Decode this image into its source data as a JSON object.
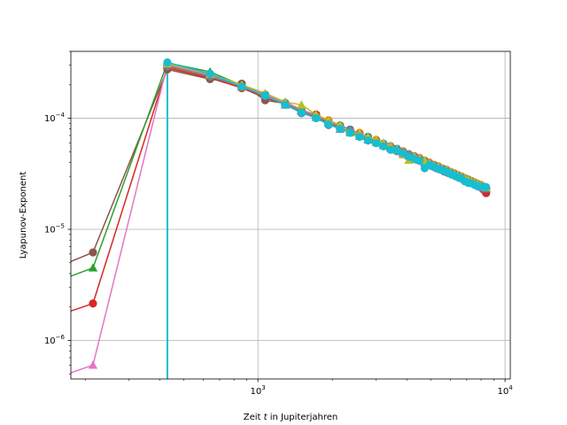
{
  "chart_data": {
    "type": "line",
    "xlabel_prefix": "Zeit ",
    "xlabel_var": "t",
    "xlabel_suffix": " in Jupiterjahren",
    "ylabel": "Lyapunov-Exponent",
    "x_scale": "log",
    "y_scale": "log",
    "xlim": [
      175,
      10500
    ],
    "ylim": [
      4.5e-07,
      0.0004
    ],
    "x_ticks": [
      {
        "value": 1000,
        "label": "10",
        "exp": "3"
      },
      {
        "value": 10000,
        "label": "10",
        "exp": "4"
      }
    ],
    "y_ticks": [
      {
        "value": 1e-06,
        "label": "10",
        "exp": "−6"
      },
      {
        "value": 1e-05,
        "label": "10",
        "exp": "−5"
      },
      {
        "value": 0.0001,
        "label": "10",
        "exp": "−4"
      }
    ],
    "grid": true,
    "legend": "none",
    "colors": [
      "#1f77b4",
      "#ff7f0e",
      "#2ca02c",
      "#d62728",
      "#9467bd",
      "#8c564b",
      "#e377c2",
      "#7f7f7f",
      "#bcbd22",
      "#17becf"
    ],
    "early_points": [
      {
        "color": "#8c564b",
        "marker": "circle",
        "x": [
          170,
          215
        ],
        "y": [
          5e-06,
          6.2e-06
        ]
      },
      {
        "color": "#2ca02c",
        "marker": "triangle",
        "x": [
          170,
          215
        ],
        "y": [
          3.7e-06,
          4.5e-06
        ]
      },
      {
        "color": "#d62728",
        "marker": "circle",
        "x": [
          170,
          215
        ],
        "y": [
          1.8e-06,
          2.15e-06
        ]
      },
      {
        "color": "#e377c2",
        "marker": "triangle",
        "x": [
          170,
          215
        ],
        "y": [
          5e-07,
          6e-07
        ]
      }
    ],
    "vertical_line": {
      "x": 430,
      "color": "#17becf"
    },
    "series": [
      {
        "color": "#1f77b4",
        "marker": "circle",
        "x": [
          430,
          640,
          860,
          1070,
          1290,
          1500,
          1720,
          1930,
          2150,
          2360,
          2580,
          2790,
          3010,
          3220,
          3440,
          3650,
          3870,
          4080,
          4300,
          4510,
          4730,
          4940,
          5160,
          5370,
          5590,
          5800,
          6020,
          6230,
          6450,
          6660,
          6880,
          7090,
          7310,
          7520,
          7740,
          7950,
          8170,
          8380
        ],
        "y": [
          0.000308,
          0.000248,
          0.000195,
          0.000163,
          0.000137,
          0.000118,
          0.000106,
          9.4e-05,
          8.6e-05,
          7.9e-05,
          7.3e-05,
          6.8e-05,
          6.35e-05,
          5.9e-05,
          5.6e-05,
          5.3e-05,
          5e-05,
          4.75e-05,
          4.55e-05,
          4.35e-05,
          4.15e-05,
          3.95e-05,
          3.8e-05,
          3.65e-05,
          3.52e-05,
          3.4e-05,
          3.28e-05,
          3.17e-05,
          3.07e-05,
          2.98e-05,
          2.88e-05,
          2.8e-05,
          2.72e-05,
          2.64e-05,
          2.57e-05,
          2.5e-05,
          2.43e-05,
          2.37e-05
        ]
      },
      {
        "color": "#ff7f0e",
        "marker": "circle",
        "x": [
          430,
          640,
          860,
          1070,
          1290,
          1500,
          1720,
          1930,
          2150,
          2360,
          2580,
          2790,
          3010,
          3220,
          3440,
          3650,
          3870,
          4080,
          4300,
          4510,
          4730,
          4940,
          5160,
          5370,
          5590,
          5800,
          6020,
          6230,
          6450,
          6660,
          6880,
          7090,
          7310,
          7520,
          7740,
          7950,
          8170,
          8380
        ],
        "y": [
          0.000292,
          0.000236,
          0.000186,
          0.000158,
          0.000133,
          0.000117,
          0.000103,
          9.6e-05,
          8.4e-05,
          7.7e-05,
          7.4e-05,
          6.6e-05,
          6.4e-05,
          5.8e-05,
          5.55e-05,
          5.15e-05,
          5.05e-05,
          4.7e-05,
          4.5e-05,
          4.4e-05,
          4.1e-05,
          4e-05,
          3.75e-05,
          3.7e-05,
          3.48e-05,
          3.44e-05,
          3.25e-05,
          3.2e-05,
          3.04e-05,
          3e-05,
          2.86e-05,
          2.82e-05,
          2.7e-05,
          2.66e-05,
          2.55e-05,
          2.52e-05,
          2.42e-05,
          2.38e-05
        ]
      },
      {
        "color": "#2ca02c",
        "marker": "triangle",
        "x": [
          430,
          640,
          860,
          1070,
          1290,
          1500,
          1720,
          1930,
          2150,
          2360,
          2580,
          2790,
          3010,
          3220,
          3440,
          3650,
          3870,
          4080,
          4300,
          4510,
          4730,
          4940,
          5160,
          5370,
          5590,
          5800,
          6020,
          6230,
          6450,
          6660,
          6880,
          7090,
          7310,
          7520,
          7740,
          7950,
          8170,
          8380
        ],
        "y": [
          0.000315,
          0.000262,
          0.000198,
          0.000166,
          0.00014,
          0.000119,
          0.000107,
          9.5e-05,
          8.5e-05,
          7.8e-05,
          7.2e-05,
          6.7e-05,
          6.3e-05,
          5.85e-05,
          5.5e-05,
          5.2e-05,
          4.95e-05,
          4.65e-05,
          4.45e-05,
          4.25e-05,
          4.1e-05,
          3.9e-05,
          3.75e-05,
          3.6e-05,
          3.48e-05,
          3.36e-05,
          3.24e-05,
          3.13e-05,
          3.03e-05,
          2.94e-05,
          2.85e-05,
          2.77e-05,
          2.69e-05,
          2.61e-05,
          2.54e-05,
          2.47e-05,
          2.41e-05,
          2.35e-05
        ]
      },
      {
        "color": "#d62728",
        "marker": "circle",
        "x": [
          430,
          640,
          860,
          1070,
          1290,
          1500,
          1720,
          1930,
          2150,
          2360,
          2580,
          2790,
          3010,
          3220,
          3440,
          3650,
          3870,
          4080,
          4300,
          4510,
          4730,
          4940,
          5160,
          5370,
          5590,
          5800,
          6020,
          6230,
          6450,
          6660,
          6880,
          7090,
          7310,
          7520,
          7740,
          7950,
          8170,
          8380
        ],
        "y": [
          0.000285,
          0.00023,
          0.000188,
          0.000152,
          0.000135,
          0.000114,
          0.000108,
          8.9e-05,
          8.3e-05,
          7.6e-05,
          7.1e-05,
          6.5e-05,
          6.2e-05,
          5.75e-05,
          5.4e-05,
          5.1e-05,
          4.9e-05,
          4.6e-05,
          4.4e-05,
          4.2e-05,
          4.05e-05,
          3.85e-05,
          3.7e-05,
          3.55e-05,
          3.42e-05,
          3.31e-05,
          3.2e-05,
          3.09e-05,
          2.99e-05,
          2.9e-05,
          2.81e-05,
          2.73e-05,
          2.65e-05,
          2.57e-05,
          2.48e-05,
          2.4e-05,
          2.28e-05,
          2.12e-05
        ]
      },
      {
        "color": "#9467bd",
        "marker": "triangle",
        "x": [
          430,
          640,
          860,
          1070,
          1290,
          1500,
          1720,
          1930,
          2150,
          2360,
          2580,
          2790,
          3010,
          3220,
          3440,
          3650,
          3870,
          4080,
          4300,
          4510,
          4730,
          4940,
          5160,
          5370,
          5590,
          5800,
          6020,
          6230,
          6450,
          6660,
          6880,
          7090,
          7310,
          7520,
          7740,
          7950,
          8170,
          8380
        ],
        "y": [
          0.0003,
          0.00024,
          0.000192,
          0.00016,
          0.000132,
          0.000116,
          0.000102,
          9.2e-05,
          8e-05,
          7.5e-05,
          6.9e-05,
          6.4e-05,
          6.1e-05,
          5.7e-05,
          5.45e-05,
          5.25e-05,
          4.85e-05,
          4.6e-05,
          4.35e-05,
          4.2e-05,
          4e-05,
          3.85e-05,
          3.7e-05,
          3.55e-05,
          3.45e-05,
          3.3e-05,
          3.2e-05,
          3.1e-05,
          3e-05,
          2.9e-05,
          2.82e-05,
          2.74e-05,
          2.66e-05,
          2.58e-05,
          2.5e-05,
          2.43e-05,
          2.37e-05,
          2.31e-05
        ]
      },
      {
        "color": "#8c564b",
        "marker": "circle",
        "x": [
          430,
          640,
          860,
          1070,
          1290,
          1500,
          1720,
          1930,
          2150,
          2360,
          2580,
          2790,
          3010,
          3220,
          3440,
          3650,
          3870,
          4080,
          4300,
          4510,
          4730,
          4940,
          5160,
          5370,
          5590,
          5800,
          6020,
          6230,
          6450,
          6660,
          6880,
          7090,
          7310,
          7520,
          7740,
          7950,
          8170,
          8380
        ],
        "y": [
          0.000275,
          0.000225,
          0.000205,
          0.000145,
          0.000136,
          0.000111,
          0.000104,
          8.7e-05,
          8.2e-05,
          7.6e-05,
          7e-05,
          6.5e-05,
          6e-05,
          5.6e-05,
          5.3e-05,
          5.05e-05,
          4.8e-05,
          4.55e-05,
          4.3e-05,
          4.15e-05,
          3.95e-05,
          3.8e-05,
          3.65e-05,
          3.5e-05,
          3.38e-05,
          3.27e-05,
          3.16e-05,
          3.06e-05,
          2.96e-05,
          2.87e-05,
          2.78e-05,
          2.7e-05,
          2.62e-05,
          2.55e-05,
          2.48e-05,
          2.42e-05,
          2.36e-05,
          2.3e-05
        ]
      },
      {
        "color": "#e377c2",
        "marker": "triangle",
        "x": [
          430,
          640,
          860,
          1070,
          1290,
          1500,
          1720,
          1930,
          2150,
          2360,
          2580,
          2790,
          3010,
          3220,
          3440,
          3650,
          3870,
          4080,
          4300,
          4510,
          4730,
          4940,
          5160,
          5370,
          5590,
          5800,
          6020,
          6230,
          6450,
          6660,
          6880,
          7090,
          7310,
          7520,
          7740,
          7950,
          8170,
          8380
        ],
        "y": [
          0.000305,
          0.000245,
          0.000195,
          0.000162,
          0.000138,
          0.00012,
          0.000105,
          9.3e-05,
          8.5e-05,
          7.8e-05,
          7.2e-05,
          6.7e-05,
          6.3e-05,
          5.9e-05,
          5.55e-05,
          5.25e-05,
          4.95e-05,
          4.7e-05,
          4.5e-05,
          4.3e-05,
          4.1e-05,
          3.95e-05,
          3.78e-05,
          3.64e-05,
          3.5e-05,
          3.38e-05,
          3.27e-05,
          3.16e-05,
          3.06e-05,
          2.96e-05,
          2.87e-05,
          2.79e-05,
          2.71e-05,
          2.63e-05,
          2.56e-05,
          2.49e-05,
          2.43e-05,
          2.36e-05
        ]
      },
      {
        "color": "#7f7f7f",
        "marker": "circle",
        "x": [
          430,
          640,
          860,
          1070,
          1290,
          1500,
          1720,
          1930,
          2150,
          2360,
          2580,
          2790,
          3010,
          3220,
          3440,
          3650,
          3870,
          4080,
          4300,
          4510,
          4730,
          4940,
          5160,
          5370,
          5590,
          5800,
          6020,
          6230,
          6450,
          6660,
          6880,
          7090,
          7310,
          7520,
          7740,
          7950,
          8170,
          8380
        ],
        "y": [
          0.000295,
          0.000238,
          0.000193,
          0.000159,
          0.000134,
          0.000116,
          0.000103,
          9.2e-05,
          8.3e-05,
          7.7e-05,
          7.1e-05,
          6.6e-05,
          6.2e-05,
          5.8e-05,
          5.45e-05,
          5.15e-05,
          4.9e-05,
          4.65e-05,
          4.45e-05,
          4.25e-05,
          4.08e-05,
          3.9e-05,
          3.74e-05,
          3.6e-05,
          3.47e-05,
          3.35e-05,
          3.23e-05,
          3.13e-05,
          3.03e-05,
          2.93e-05,
          2.84e-05,
          2.76e-05,
          2.68e-05,
          2.6e-05,
          2.53e-05,
          2.46e-05,
          2.4e-05,
          2.34e-05
        ]
      },
      {
        "color": "#bcbd22",
        "marker": "triangle",
        "x": [
          430,
          640,
          860,
          1070,
          1290,
          1500,
          1720,
          1930,
          2150,
          2360,
          2580,
          2790,
          3010,
          3220,
          3440,
          3650,
          3870,
          4080,
          4300,
          4510,
          4730,
          4940,
          5160,
          5370,
          5590,
          5800,
          6020,
          6230,
          6450,
          6660,
          6880,
          7090,
          7310,
          7520,
          7740,
          7950,
          8170,
          8380
        ],
        "y": [
          0.00031,
          0.00025,
          0.0002,
          0.000168,
          0.00014,
          0.000132,
          0.000108,
          9.6e-05,
          8.7e-05,
          7.4e-05,
          7.3e-05,
          6.8e-05,
          6.4e-05,
          6e-05,
          5.6e-05,
          5.3e-05,
          4.7e-05,
          4.2e-05,
          4.5e-05,
          4.3e-05,
          4.15e-05,
          3.95e-05,
          3.8e-05,
          3.65e-05,
          3.5e-05,
          3.4e-05,
          3.28e-05,
          3.17e-05,
          3.07e-05,
          2.97e-05,
          2.88e-05,
          2.8e-05,
          2.72e-05,
          2.64e-05,
          2.57e-05,
          2.5e-05,
          2.44e-05,
          2.38e-05
        ]
      },
      {
        "color": "#17becf",
        "marker": "circle",
        "x": [
          430,
          640,
          860,
          1070,
          1290,
          1500,
          1720,
          1930,
          2150,
          2360,
          2580,
          2790,
          3010,
          3220,
          3440,
          3650,
          3870,
          4080,
          4300,
          4510,
          4730,
          4940,
          5160,
          5370,
          5590,
          5800,
          6020,
          6230,
          6450,
          6660,
          6880,
          7090,
          7310,
          7520,
          7740,
          7950,
          8170,
          8380
        ],
        "y": [
          0.000318,
          0.000252,
          0.000192,
          0.00016,
          0.000132,
          0.000112,
          0.0001,
          8.8e-05,
          8e-05,
          7.4e-05,
          6.8e-05,
          6.3e-05,
          5.95e-05,
          5.6e-05,
          5.2e-05,
          5.1e-05,
          4.85e-05,
          4.5e-05,
          4.3e-05,
          4.15e-05,
          3.55e-05,
          3.8e-05,
          3.65e-05,
          3.5e-05,
          3.4e-05,
          3.3e-05,
          3.15e-05,
          3.06e-05,
          2.95e-05,
          2.87e-05,
          2.7e-05,
          2.62e-05,
          2.6e-05,
          2.52e-05,
          2.45e-05,
          2.42e-05,
          2.4e-05,
          2.4e-05
        ]
      }
    ]
  }
}
